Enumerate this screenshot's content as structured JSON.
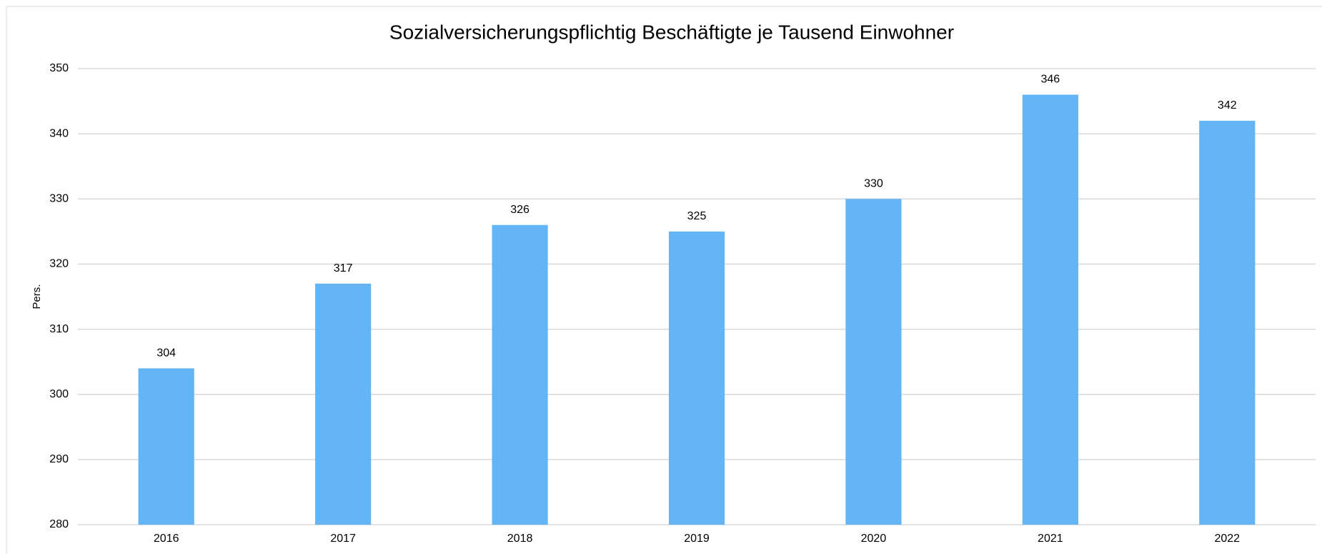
{
  "chart_data": {
    "type": "bar",
    "title": "Sozialversicherungspflichtig Beschäftigte je Tausend Einwohner",
    "y_label": "Pers.",
    "categories": [
      "2016",
      "2017",
      "2018",
      "2019",
      "2020",
      "2021",
      "2022"
    ],
    "values": [
      304,
      317,
      326,
      325,
      330,
      346,
      342
    ],
    "color": "#64b5f6",
    "ylim": [
      280,
      350
    ],
    "yticks": [
      280,
      290,
      300,
      310,
      320,
      330,
      340,
      350
    ],
    "grid": true
  }
}
